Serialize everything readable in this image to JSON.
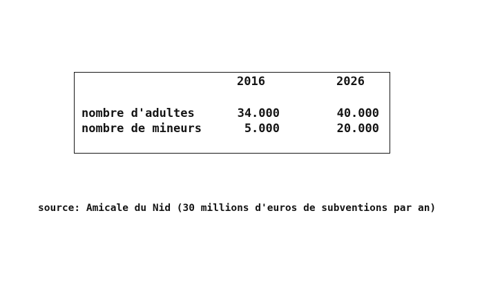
{
  "table": {
    "columns": [
      "2016",
      "2026"
    ],
    "rows": [
      {
        "label": "nombre d'adultes",
        "values": [
          "34.000",
          "40.000"
        ]
      },
      {
        "label": "nombre de mineurs",
        "values": [
          "5.000",
          "20.000"
        ]
      }
    ]
  },
  "source_note": "source: Amicale du Nid (30 millions d'euros de subventions par an)",
  "colors": {
    "background": "#ffffff",
    "text": "#141414",
    "table_border": "#141414"
  },
  "chart_data": {
    "type": "table",
    "categories": [
      "2016",
      "2026"
    ],
    "series": [
      {
        "name": "nombre d'adultes",
        "values": [
          34000,
          40000
        ]
      },
      {
        "name": "nombre de mineurs",
        "values": [
          5000,
          20000
        ]
      }
    ],
    "title": "",
    "xlabel": "",
    "ylabel": "",
    "annotations": [
      "source: Amicale du Nid (30 millions d'euros de subventions par an)"
    ]
  }
}
